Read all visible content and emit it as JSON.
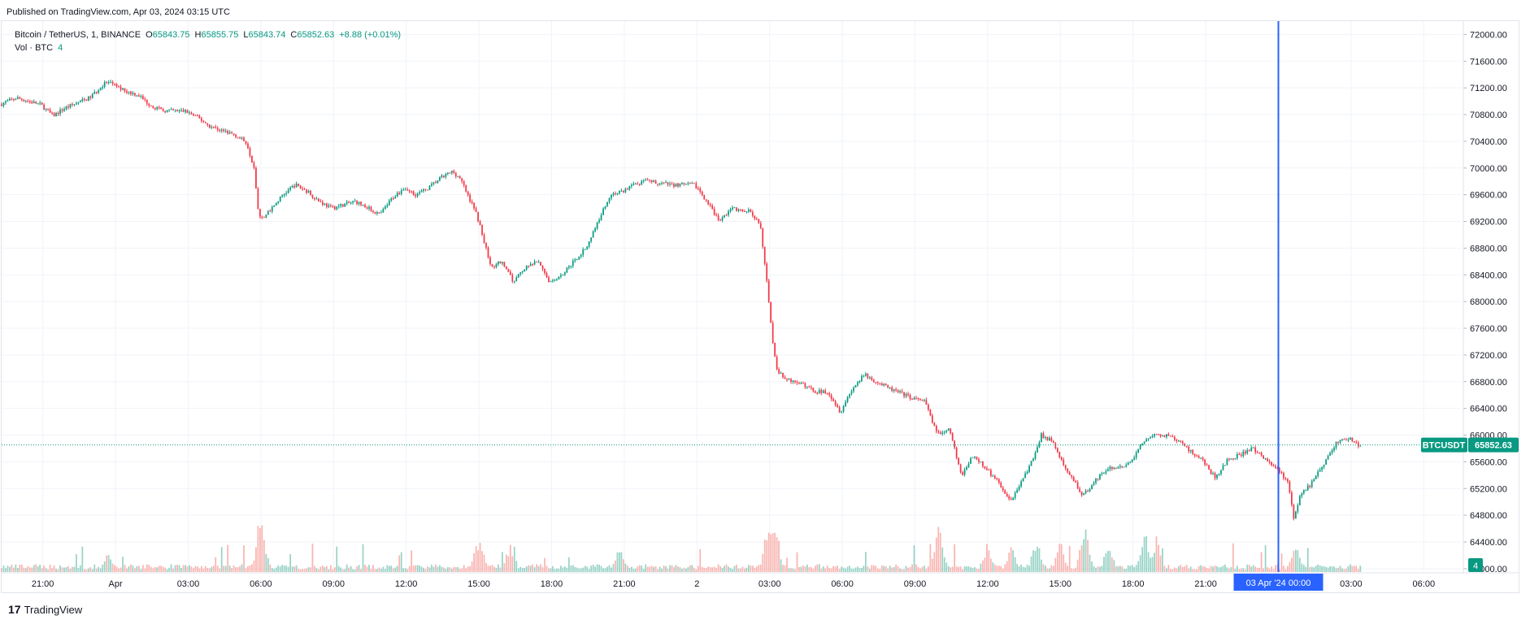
{
  "header": {
    "published": "Published on TradingView.com, Apr 03, 2024 03:15 UTC"
  },
  "legend": {
    "symbol": "Bitcoin / TetherUS, 1, BINANCE",
    "o_label": "O",
    "o_value": "65843.75",
    "h_label": "H",
    "h_value": "65855.75",
    "l_label": "L",
    "l_value": "65843.74",
    "c_label": "C",
    "c_value": "65852.63",
    "change": "+8.88 (+0.01%)",
    "vol_label": "Vol · BTC",
    "vol_value": "4"
  },
  "price_tag": {
    "ticker": "BTCUSDT",
    "price": "65852.63"
  },
  "volume_tag": "4",
  "crosshair_time": "03 Apr '24   00:00",
  "footer": {
    "brand": "TradingView",
    "logo_glyph": "17"
  },
  "colors": {
    "up": "#089981",
    "down": "#f23645",
    "up_vol": "#7ec8b8",
    "down_vol": "#f7a29e",
    "crosshair": "#2962ff",
    "grid": "#f0f3fa",
    "price_line": "#089981"
  },
  "chart_data": {
    "type": "candlestick",
    "symbol": "BTCUSDT",
    "interval": "1",
    "y_axis": {
      "ticks": [
        "72000.00",
        "71600.00",
        "71200.00",
        "70800.00",
        "70400.00",
        "70000.00",
        "69600.00",
        "69200.00",
        "68800.00",
        "68400.00",
        "68000.00",
        "67600.00",
        "67200.00",
        "66800.00",
        "66400.00",
        "66000.00",
        "65600.00",
        "65200.00",
        "64800.00",
        "64400.00",
        "64000.00"
      ],
      "min": 63950,
      "max": 72200
    },
    "x_axis": {
      "ticks": [
        "21:00",
        "Apr",
        "03:00",
        "06:00",
        "09:00",
        "12:00",
        "15:00",
        "18:00",
        "21:00",
        "2",
        "03:00",
        "06:00",
        "09:00",
        "12:00",
        "15:00",
        "18:00",
        "21:00",
        "03:00",
        "06:00"
      ],
      "tick_hours": [
        -3,
        0,
        3,
        6,
        9,
        12,
        15,
        18,
        21,
        24,
        27,
        30,
        33,
        36,
        39,
        42,
        45,
        51,
        54
      ],
      "range_hours": [
        -4.7,
        55.5
      ]
    },
    "crosshair_hour": 48,
    "last_price": 65852.63,
    "price_path": [
      [
        -4.7,
        70950
      ],
      [
        -4.0,
        71050
      ],
      [
        -3.0,
        70950
      ],
      [
        -2.5,
        70780
      ],
      [
        -2.0,
        70900
      ],
      [
        -1.0,
        71050
      ],
      [
        -0.3,
        71280
      ],
      [
        0.0,
        71250
      ],
      [
        0.5,
        71150
      ],
      [
        1.0,
        71100
      ],
      [
        1.5,
        70950
      ],
      [
        2.0,
        70860
      ],
      [
        3.0,
        70850
      ],
      [
        3.5,
        70750
      ],
      [
        4.0,
        70620
      ],
      [
        5.0,
        70500
      ],
      [
        5.5,
        70380
      ],
      [
        5.8,
        70000
      ],
      [
        6.0,
        69250
      ],
      [
        6.3,
        69300
      ],
      [
        7.0,
        69600
      ],
      [
        7.5,
        69750
      ],
      [
        8.0,
        69650
      ],
      [
        8.5,
        69500
      ],
      [
        9.0,
        69400
      ],
      [
        10.0,
        69500
      ],
      [
        10.5,
        69400
      ],
      [
        11.0,
        69300
      ],
      [
        11.5,
        69550
      ],
      [
        12.0,
        69700
      ],
      [
        12.5,
        69600
      ],
      [
        13.0,
        69700
      ],
      [
        13.5,
        69850
      ],
      [
        14.0,
        69950
      ],
      [
        14.3,
        69850
      ],
      [
        15.0,
        69300
      ],
      [
        15.3,
        68900
      ],
      [
        15.6,
        68500
      ],
      [
        16.0,
        68600
      ],
      [
        16.5,
        68300
      ],
      [
        17.0,
        68500
      ],
      [
        17.5,
        68600
      ],
      [
        18.0,
        68300
      ],
      [
        18.5,
        68400
      ],
      [
        19.0,
        68600
      ],
      [
        19.5,
        68800
      ],
      [
        20.0,
        69200
      ],
      [
        20.5,
        69600
      ],
      [
        21.0,
        69650
      ],
      [
        21.5,
        69750
      ],
      [
        22.0,
        69800
      ],
      [
        23.0,
        69750
      ],
      [
        24.0,
        69750
      ],
      [
        24.5,
        69500
      ],
      [
        25.0,
        69200
      ],
      [
        25.5,
        69400
      ],
      [
        26.0,
        69350
      ],
      [
        26.3,
        69350
      ],
      [
        26.7,
        69150
      ],
      [
        27.0,
        68200
      ],
      [
        27.2,
        67400
      ],
      [
        27.4,
        66950
      ],
      [
        28.0,
        66800
      ],
      [
        28.5,
        66750
      ],
      [
        29.0,
        66650
      ],
      [
        29.5,
        66650
      ],
      [
        30.0,
        66350
      ],
      [
        30.5,
        66700
      ],
      [
        31.0,
        66900
      ],
      [
        31.5,
        66800
      ],
      [
        32.0,
        66700
      ],
      [
        33.0,
        66550
      ],
      [
        33.5,
        66500
      ],
      [
        34.0,
        66000
      ],
      [
        34.5,
        66100
      ],
      [
        35.0,
        65400
      ],
      [
        35.5,
        65700
      ],
      [
        36.0,
        65500
      ],
      [
        36.5,
        65300
      ],
      [
        37.0,
        65000
      ],
      [
        37.5,
        65300
      ],
      [
        38.0,
        65700
      ],
      [
        38.3,
        66000
      ],
      [
        38.8,
        65900
      ],
      [
        39.0,
        65700
      ],
      [
        39.5,
        65400
      ],
      [
        40.0,
        65100
      ],
      [
        40.5,
        65300
      ],
      [
        41.0,
        65500
      ],
      [
        41.5,
        65500
      ],
      [
        42.0,
        65600
      ],
      [
        42.5,
        65900
      ],
      [
        43.0,
        66000
      ],
      [
        43.5,
        66000
      ],
      [
        44.0,
        65900
      ],
      [
        45.0,
        65600
      ],
      [
        45.5,
        65350
      ],
      [
        46.0,
        65650
      ],
      [
        46.5,
        65700
      ],
      [
        47.0,
        65800
      ],
      [
        47.5,
        65650
      ],
      [
        48.0,
        65500
      ],
      [
        48.5,
        65300
      ],
      [
        48.7,
        64750
      ],
      [
        49.0,
        65100
      ],
      [
        49.5,
        65300
      ],
      [
        50.0,
        65600
      ],
      [
        50.5,
        65900
      ],
      [
        51.0,
        65950
      ],
      [
        51.4,
        65850
      ]
    ],
    "volume_spikes": [
      [
        -0.3,
        0.35
      ],
      [
        6.0,
        1.0
      ],
      [
        15.0,
        0.6
      ],
      [
        16.3,
        0.5
      ],
      [
        20.8,
        0.4
      ],
      [
        27.0,
        1.0
      ],
      [
        27.2,
        0.9
      ],
      [
        34.0,
        0.8
      ],
      [
        36.0,
        0.5
      ],
      [
        37.0,
        0.45
      ],
      [
        38.0,
        0.55
      ],
      [
        39.0,
        0.5
      ],
      [
        40.0,
        0.85
      ],
      [
        41.0,
        0.5
      ],
      [
        42.5,
        0.65
      ],
      [
        43.0,
        0.6
      ],
      [
        48.7,
        0.5
      ]
    ]
  }
}
